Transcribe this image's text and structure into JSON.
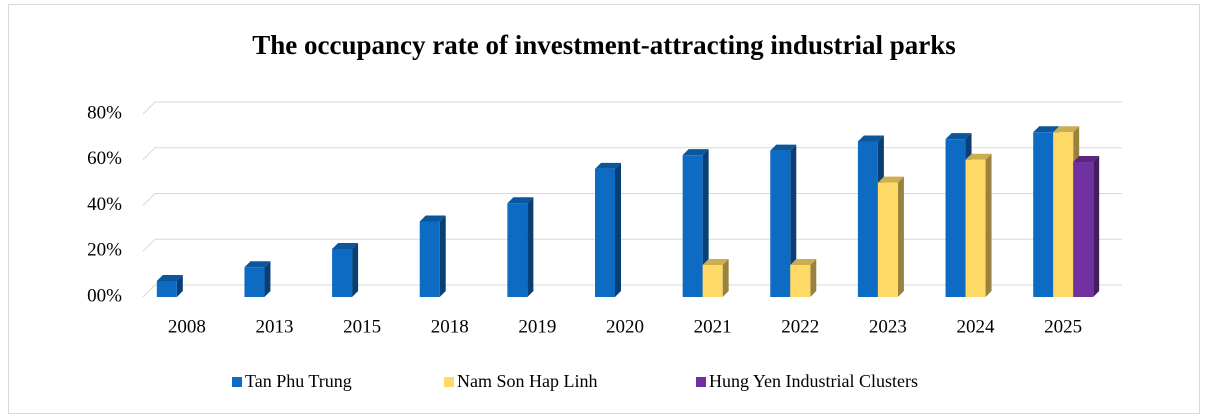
{
  "chart_data": {
    "type": "bar3d",
    "title": "The occupancy rate of investment-attracting industrial parks",
    "categories": [
      "2008",
      "2013",
      "2015",
      "2018",
      "2019",
      "2020",
      "2021",
      "2022",
      "2023",
      "2024",
      "2025"
    ],
    "series": [
      {
        "name": "Tan Phu Trung",
        "color": "#0e6bc4",
        "values": [
          7,
          13,
          21,
          33,
          41,
          56,
          62,
          64,
          68,
          69,
          72
        ]
      },
      {
        "name": "Nam Son Hap Linh",
        "color": "#ffd966",
        "values": [
          null,
          null,
          null,
          null,
          null,
          null,
          14,
          14,
          50,
          60,
          72
        ]
      },
      {
        "name": "Hung Yen Industrial Clusters",
        "color": "#7030a0",
        "values": [
          null,
          null,
          null,
          null,
          null,
          null,
          null,
          null,
          null,
          null,
          59
        ]
      }
    ],
    "ylim": [
      0,
      80
    ],
    "yticks": [
      {
        "value": 0,
        "label": "00%"
      },
      {
        "value": 20,
        "label": "20%"
      },
      {
        "value": 40,
        "label": "40%"
      },
      {
        "value": 60,
        "label": "60%"
      },
      {
        "value": 80,
        "label": "80%"
      }
    ],
    "grid": true,
    "legend": "bottom"
  }
}
